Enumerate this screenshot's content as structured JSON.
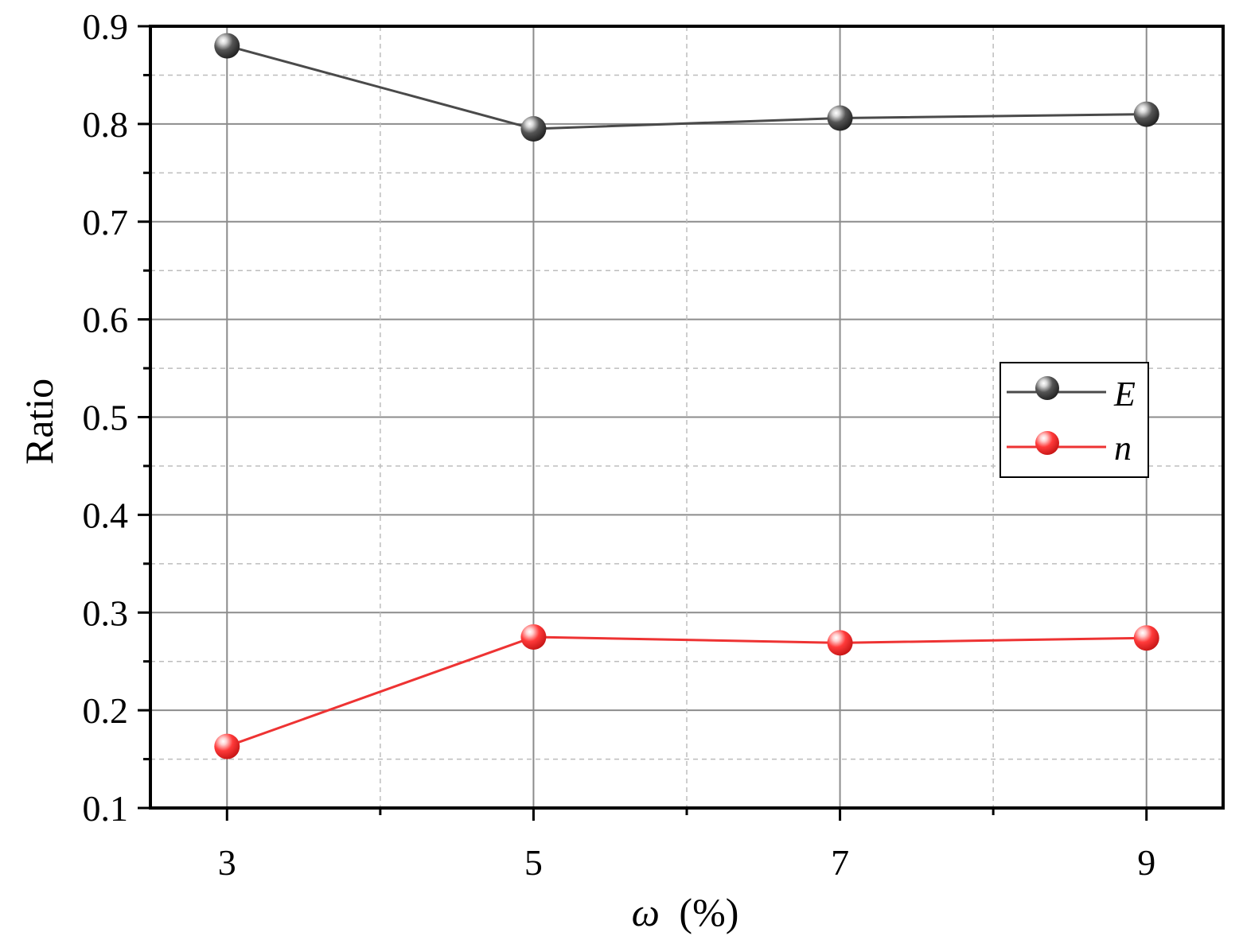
{
  "chart_data": {
    "type": "line",
    "title": "",
    "xlabel_symbol": "ω",
    "xlabel_unit": "(%)",
    "ylabel": "Ratio",
    "x": [
      3,
      5,
      7,
      9
    ],
    "xlim": [
      2.5,
      9.5
    ],
    "ylim": [
      0.1,
      0.9
    ],
    "xticks": [
      "3",
      "5",
      "7",
      "9"
    ],
    "yticks": [
      "0.1",
      "0.2",
      "0.3",
      "0.4",
      "0.5",
      "0.6",
      "0.7",
      "0.8",
      "0.9"
    ],
    "grid": true,
    "legend_position": "right-middle",
    "series": [
      {
        "name": "E",
        "values": [
          0.88,
          0.795,
          0.806,
          0.81
        ],
        "color": "#4a4a4a"
      },
      {
        "name": "n",
        "values": [
          0.163,
          0.275,
          0.269,
          0.274
        ],
        "color": "#ee3333"
      }
    ]
  }
}
